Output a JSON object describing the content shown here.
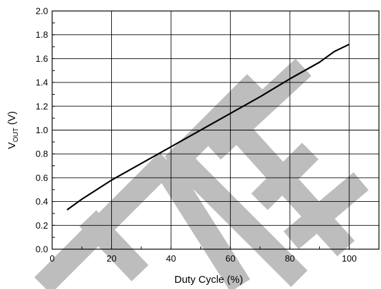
{
  "chart_data": {
    "type": "line",
    "xlabel": "Duty Cycle (%)",
    "ylabel": {
      "main": "V",
      "sub": "OUT",
      "suffix": " (V)"
    },
    "xlim": [
      0,
      110
    ],
    "ylim": [
      0.0,
      2.0
    ],
    "x_ticks": [
      0,
      20,
      40,
      60,
      80,
      100
    ],
    "y_ticks": [
      "0.0",
      "0.2",
      "0.4",
      "0.6",
      "0.8",
      "1.0",
      "1.2",
      "1.4",
      "1.6",
      "1.8",
      "2.0"
    ],
    "grid": true,
    "series": [
      {
        "x": [
          5,
          10,
          20,
          30,
          40,
          50,
          60,
          70,
          80,
          90,
          95,
          100
        ],
        "y": [
          0.33,
          0.42,
          0.58,
          0.72,
          0.86,
          1.0,
          1.14,
          1.28,
          1.43,
          1.57,
          1.66,
          1.72
        ]
      }
    ],
    "watermark": "ATE",
    "watermark_color": "#bdbdbd"
  }
}
